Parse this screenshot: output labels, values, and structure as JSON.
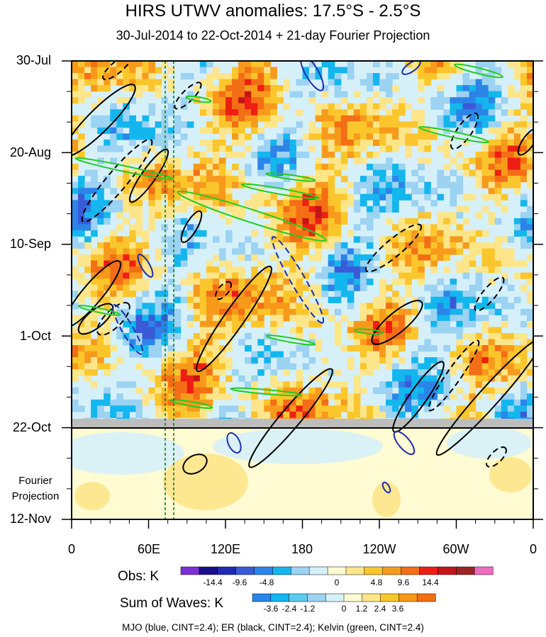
{
  "chart_data": {
    "type": "heatmap",
    "title": "HIRS UTWV anomalies: 17.5°S - 2.5°S",
    "subtitle": "30-Jul-2014 to 22-Oct-2014 + 21-day Fourier Projection",
    "y_tick_labels": [
      "30-Jul",
      "20-Aug",
      "10-Sep",
      "1-Oct",
      "22-Oct",
      "12-Nov"
    ],
    "x_tick_labels": [
      "0",
      "60E",
      "120E",
      "180",
      "120W",
      "60W",
      "0"
    ],
    "projection_label": [
      "Fourier",
      "Projection"
    ],
    "obs_colorbar": {
      "label": "Obs: K",
      "tick_labels": [
        "-14.4",
        "-9.6",
        "-4.8",
        "0",
        "4.8",
        "9.6",
        "14.4"
      ],
      "colors": [
        "#7b2fd6",
        "#1a0d8c",
        "#1e2bb0",
        "#3a5ad8",
        "#2b85e8",
        "#14b6ee",
        "#9cd2f2",
        "#d6f0fa",
        "#fffbd2",
        "#fde58a",
        "#fbc62c",
        "#f79a1c",
        "#f46e16",
        "#ee1e14",
        "#c4141a",
        "#9e2424",
        "#ee6cc0"
      ]
    },
    "waves_colorbar": {
      "label": "Sum of Waves: K",
      "tick_labels": [
        "-3.6",
        "-2.4",
        "-1.2",
        "0",
        "1.2",
        "2.4",
        "3.6"
      ],
      "colors": [
        "#2b85e8",
        "#14b6ee",
        "#5ecaf2",
        "#9cd2f2",
        "#d6f0fa",
        "#fffbd2",
        "#fde58a",
        "#fbc62c",
        "#f79a1c",
        "#f46e16"
      ]
    },
    "caption": "MJO (blue, CINT=2.4); ER (black, CINT=2.4); Kelvin (green, CINT=2.4)",
    "contour_intervals": {
      "MJO": 2.4,
      "ER": 2.4,
      "Kelvin": 2.4
    },
    "series_colors": {
      "MJO": "#1e2bb0",
      "ER": "#000000",
      "Kelvin": "#22cc22",
      "reference_lines": "#1a7a1a"
    }
  }
}
